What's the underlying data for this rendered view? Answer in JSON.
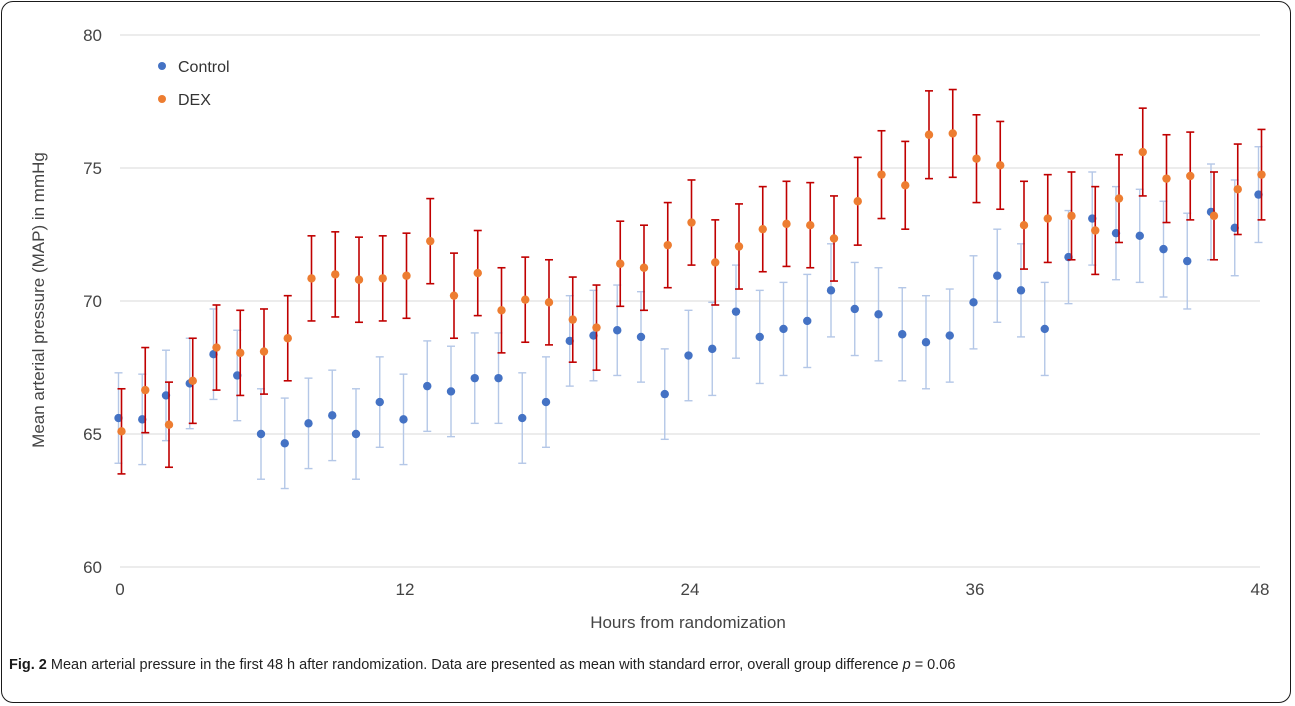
{
  "caption": {
    "label": "Fig. 2",
    "text_before_p": "Mean arterial pressure in the first 48 h after randomization. Data are presented as mean with standard error, overall group difference",
    "p_symbol": "p",
    "text_after_p": "= 0.06"
  },
  "chart_data": {
    "type": "scatter",
    "title": "",
    "xlabel": "Hours from randomization",
    "ylabel": "Mean arterial pressure (MAP) in mmHg",
    "xlim": [
      0,
      48
    ],
    "ylim": [
      60,
      80
    ],
    "x_ticks": [
      0,
      12,
      24,
      36,
      48
    ],
    "y_ticks": [
      60,
      65,
      70,
      75,
      80
    ],
    "grid": "horizontal",
    "legend": "top-left",
    "error_bars": "standard error",
    "series": [
      {
        "name": "Control",
        "color": "#4472c4",
        "error_color": "#b4c7e7",
        "x": [
          0,
          1,
          2,
          3,
          4,
          5,
          6,
          7,
          8,
          9,
          10,
          11,
          12,
          13,
          14,
          15,
          16,
          17,
          18,
          19,
          20,
          21,
          22,
          23,
          24,
          25,
          26,
          27,
          28,
          29,
          30,
          31,
          32,
          33,
          34,
          35,
          36,
          37,
          38,
          39,
          40,
          41,
          42,
          43,
          44,
          45,
          46,
          47,
          48
        ],
        "values": [
          65.6,
          65.55,
          66.45,
          66.9,
          68.0,
          67.2,
          65.0,
          64.65,
          65.4,
          65.7,
          65.0,
          66.2,
          65.55,
          66.8,
          66.6,
          67.1,
          67.1,
          65.6,
          66.2,
          68.5,
          68.7,
          68.9,
          68.65,
          66.5,
          67.95,
          68.2,
          69.6,
          68.65,
          68.95,
          69.25,
          70.4,
          69.7,
          69.5,
          68.75,
          68.45,
          68.7,
          69.95,
          70.95,
          70.4,
          68.95,
          71.65,
          73.1,
          72.55,
          72.45,
          71.95,
          71.5,
          73.35,
          72.75,
          74.0
        ],
        "se": [
          1.7,
          1.7,
          1.7,
          1.7,
          1.7,
          1.7,
          1.7,
          1.7,
          1.7,
          1.7,
          1.7,
          1.7,
          1.7,
          1.7,
          1.7,
          1.7,
          1.7,
          1.7,
          1.7,
          1.7,
          1.7,
          1.7,
          1.7,
          1.7,
          1.7,
          1.75,
          1.75,
          1.75,
          1.75,
          1.75,
          1.75,
          1.75,
          1.75,
          1.75,
          1.75,
          1.75,
          1.75,
          1.75,
          1.75,
          1.75,
          1.75,
          1.75,
          1.75,
          1.75,
          1.8,
          1.8,
          1.8,
          1.8,
          1.8
        ]
      },
      {
        "name": "DEX",
        "color": "#ed7d31",
        "error_color": "#c00000",
        "x": [
          0,
          1,
          2,
          3,
          4,
          5,
          6,
          7,
          8,
          9,
          10,
          11,
          12,
          13,
          14,
          15,
          16,
          17,
          18,
          19,
          20,
          21,
          22,
          23,
          24,
          25,
          26,
          27,
          28,
          29,
          30,
          31,
          32,
          33,
          34,
          35,
          36,
          37,
          38,
          39,
          40,
          41,
          42,
          43,
          44,
          45,
          46,
          47,
          48
        ],
        "values": [
          65.1,
          66.65,
          65.35,
          67.0,
          68.25,
          68.05,
          68.1,
          68.6,
          70.85,
          71.0,
          70.8,
          70.85,
          70.95,
          72.25,
          70.2,
          71.05,
          69.65,
          70.05,
          69.95,
          69.3,
          69.0,
          71.4,
          71.25,
          72.1,
          72.95,
          71.45,
          72.05,
          72.7,
          72.9,
          72.85,
          72.35,
          73.75,
          74.75,
          74.35,
          76.25,
          76.3,
          75.35,
          75.1,
          72.85,
          73.1,
          73.2,
          72.65,
          73.85,
          75.6,
          74.6,
          74.7,
          73.2,
          74.2,
          74.75
        ],
        "se": [
          1.6,
          1.6,
          1.6,
          1.6,
          1.6,
          1.6,
          1.6,
          1.6,
          1.6,
          1.6,
          1.6,
          1.6,
          1.6,
          1.6,
          1.6,
          1.6,
          1.6,
          1.6,
          1.6,
          1.6,
          1.6,
          1.6,
          1.6,
          1.6,
          1.6,
          1.6,
          1.6,
          1.6,
          1.6,
          1.6,
          1.6,
          1.65,
          1.65,
          1.65,
          1.65,
          1.65,
          1.65,
          1.65,
          1.65,
          1.65,
          1.65,
          1.65,
          1.65,
          1.65,
          1.65,
          1.65,
          1.65,
          1.7,
          1.7
        ]
      }
    ]
  }
}
